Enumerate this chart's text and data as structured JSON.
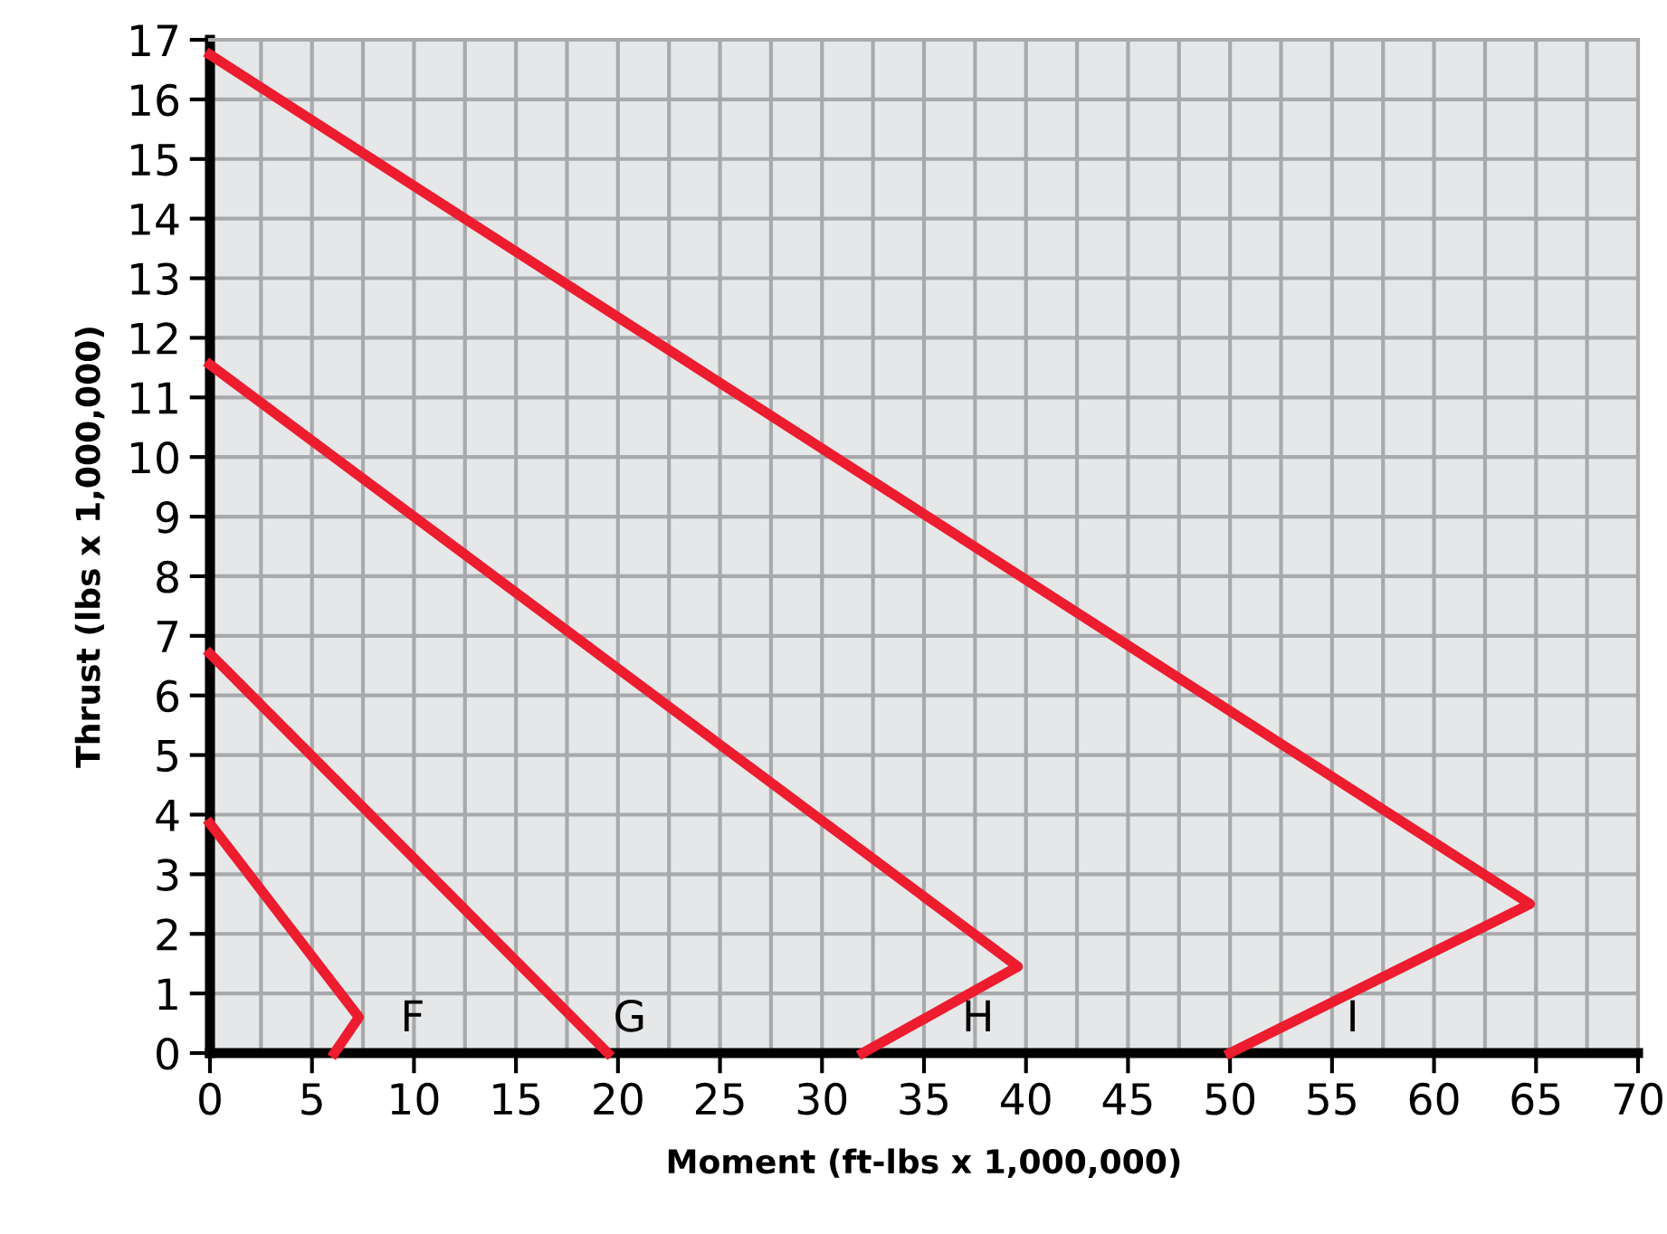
{
  "chart_data": {
    "type": "line",
    "xlabel": "Moment (ft-lbs x 1,000,000)",
    "ylabel": "Thrust (lbs x 1,000,000)",
    "xlim": [
      0,
      70
    ],
    "xticks": [
      0,
      5,
      10,
      15,
      20,
      25,
      30,
      35,
      40,
      45,
      50,
      55,
      60,
      65,
      70
    ],
    "ylim": [
      0,
      17
    ],
    "yticks": [
      0,
      1,
      2,
      3,
      4,
      5,
      6,
      7,
      8,
      9,
      10,
      11,
      12,
      13,
      14,
      15,
      16,
      17
    ],
    "grid": true,
    "legend": false,
    "marker": "none",
    "line_style": "solid",
    "series": [
      {
        "name": "F",
        "color": "#ed1c2e",
        "x": [
          0,
          7.3,
          6.1
        ],
        "values": [
          3.85,
          0.6,
          0
        ]
      },
      {
        "name": "G",
        "color": "#ed1c2e",
        "x": [
          0,
          19.5
        ],
        "values": [
          6.7,
          0
        ]
      },
      {
        "name": "H",
        "color": "#ed1c2e",
        "x": [
          0,
          39.6,
          32.0
        ],
        "values": [
          11.55,
          1.45,
          0
        ]
      },
      {
        "name": "I",
        "color": "#ed1c2e",
        "x": [
          0,
          64.7,
          50.0
        ],
        "values": [
          16.75,
          2.5,
          0
        ]
      }
    ]
  }
}
